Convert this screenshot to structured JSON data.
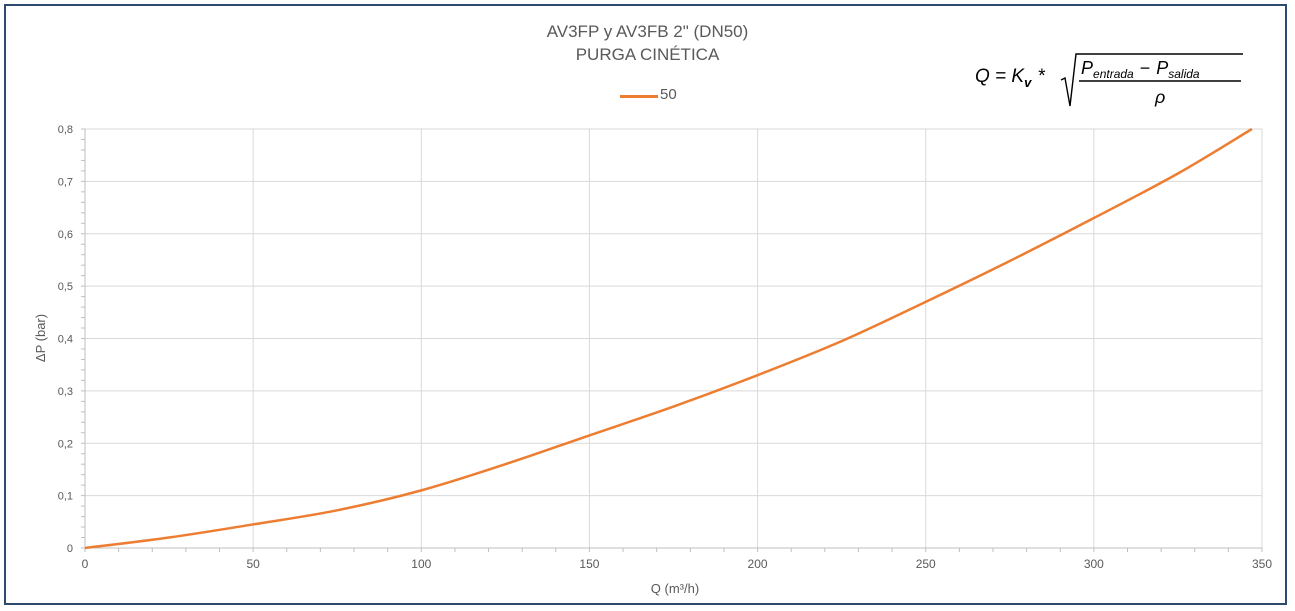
{
  "chart_data": {
    "type": "line",
    "title": "AV3FP y AV3FB 2\" (DN50)",
    "subtitle": "PURGA CINÉTICA",
    "xlabel": "Q (m³/h)",
    "ylabel": "ΔP (bar)",
    "xlim": [
      0,
      350
    ],
    "ylim": [
      0,
      0.8
    ],
    "x_ticks": [
      "0",
      "50",
      "100",
      "150",
      "200",
      "250",
      "300",
      "350"
    ],
    "y_ticks": [
      "0",
      "0,1",
      "0,2",
      "0,3",
      "0,4",
      "0,5",
      "0,6",
      "0,7",
      "0,8"
    ],
    "grid": true,
    "legend_position": "top-center",
    "series": [
      {
        "name": "50",
        "color": "#ed7d31",
        "x": [
          0,
          25,
          50,
          75,
          100,
          125,
          150,
          175,
          200,
          225,
          250,
          275,
          300,
          325,
          347
        ],
        "y": [
          0,
          0.02,
          0.045,
          0.072,
          0.11,
          0.16,
          0.215,
          0.27,
          0.33,
          0.395,
          0.47,
          0.548,
          0.63,
          0.715,
          0.8
        ]
      }
    ]
  },
  "formula": {
    "lhs": "Q = K",
    "kv_sub": "v",
    "times": "*",
    "p": "P",
    "in_sub": "entrada",
    "minus": "−",
    "out_sub": "salida",
    "rho": "ρ"
  }
}
